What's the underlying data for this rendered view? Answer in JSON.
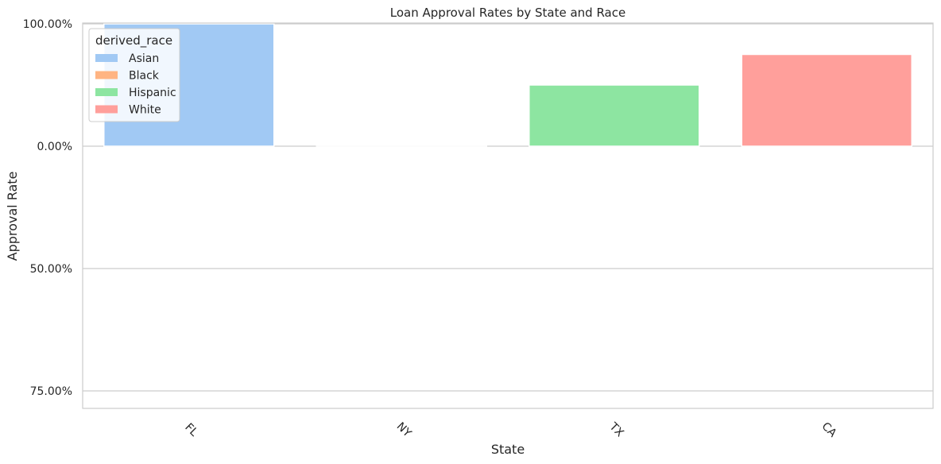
{
  "chart_data": {
    "type": "bar",
    "title": "Loan Approval Rates by State and Race",
    "xlabel": "State",
    "ylabel": "Approval Rate",
    "categories": [
      "FL",
      "NY",
      "TX",
      "CA"
    ],
    "y_tick_labels": [
      "100.00%",
      "0.00%",
      "50.00%",
      "75.00%"
    ],
    "legend": {
      "title": "derived_race",
      "placement": "upper-left",
      "entries": [
        "Asian",
        "Black",
        "Hispanic",
        "White"
      ]
    },
    "series": [
      {
        "name": "Asian",
        "color": "#a1c9f4",
        "values": [
          1.0,
          null,
          null,
          null
        ]
      },
      {
        "name": "Black",
        "color": "#ffb482",
        "values": [
          null,
          0.0,
          null,
          null
        ]
      },
      {
        "name": "Hispanic",
        "color": "#8de5a1",
        "values": [
          null,
          null,
          0.5,
          null
        ]
      },
      {
        "name": "White",
        "color": "#ff9f9b",
        "values": [
          null,
          null,
          null,
          0.75
        ]
      }
    ],
    "grid": "horizontal",
    "x_tick_rotation": "45 degrees"
  }
}
